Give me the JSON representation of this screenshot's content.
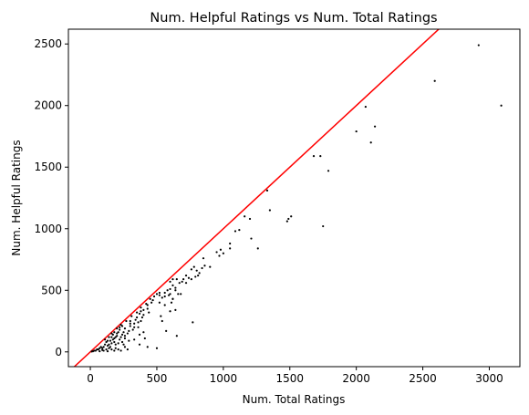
{
  "chart_data": {
    "type": "scatter",
    "title": "Num. Helpful Ratings vs Num. Total Ratings",
    "xlabel": "Num. Total Ratings",
    "ylabel": "Num. Helpful Ratings",
    "xlim": [
      -165,
      3230
    ],
    "ylim": [
      -120,
      2620
    ],
    "xticks": [
      0,
      500,
      1000,
      1500,
      2000,
      2500,
      3000
    ],
    "yticks": [
      0,
      500,
      1000,
      1500,
      2000,
      2500
    ],
    "grid": false,
    "point_color": "#000000",
    "line_color": "#ff0000",
    "reference_line": {
      "slope": 1,
      "intercept": 0
    },
    "points": [
      [
        2920,
        2490
      ],
      [
        3090,
        2000
      ],
      [
        2590,
        2200
      ],
      [
        2140,
        1830
      ],
      [
        2070,
        1990
      ],
      [
        2000,
        1790
      ],
      [
        2110,
        1700
      ],
      [
        1680,
        1590
      ],
      [
        1730,
        1590
      ],
      [
        1790,
        1470
      ],
      [
        1330,
        1310
      ],
      [
        1350,
        1150
      ],
      [
        1160,
        1100
      ],
      [
        1200,
        1080
      ],
      [
        1490,
        1080
      ],
      [
        1480,
        1060
      ],
      [
        1510,
        1100
      ],
      [
        1750,
        1020
      ],
      [
        1120,
        990
      ],
      [
        1090,
        980
      ],
      [
        1210,
        920
      ],
      [
        1260,
        840
      ],
      [
        1050,
        880
      ],
      [
        1050,
        840
      ],
      [
        980,
        830
      ],
      [
        950,
        810
      ],
      [
        1000,
        800
      ],
      [
        970,
        780
      ],
      [
        850,
        760
      ],
      [
        860,
        700
      ],
      [
        900,
        690
      ],
      [
        840,
        680
      ],
      [
        780,
        690
      ],
      [
        800,
        660
      ],
      [
        760,
        670
      ],
      [
        820,
        640
      ],
      [
        810,
        620
      ],
      [
        790,
        610
      ],
      [
        720,
        620
      ],
      [
        740,
        600
      ],
      [
        760,
        590
      ],
      [
        700,
        590
      ],
      [
        690,
        570
      ],
      [
        720,
        560
      ],
      [
        670,
        560
      ],
      [
        620,
        590
      ],
      [
        650,
        590
      ],
      [
        600,
        570
      ],
      [
        620,
        540
      ],
      [
        640,
        520
      ],
      [
        600,
        510
      ],
      [
        580,
        500
      ],
      [
        640,
        500
      ],
      [
        560,
        480
      ],
      [
        600,
        470
      ],
      [
        560,
        450
      ],
      [
        520,
        460
      ],
      [
        520,
        400
      ],
      [
        540,
        440
      ],
      [
        620,
        430
      ],
      [
        610,
        400
      ],
      [
        560,
        380
      ],
      [
        640,
        340
      ],
      [
        600,
        330
      ],
      [
        530,
        290
      ],
      [
        540,
        250
      ],
      [
        570,
        170
      ],
      [
        620,
        430
      ],
      [
        660,
        470
      ],
      [
        590,
        460
      ],
      [
        680,
        470
      ],
      [
        770,
        240
      ],
      [
        650,
        130
      ],
      [
        500,
        30
      ],
      [
        430,
        40
      ],
      [
        370,
        60
      ],
      [
        460,
        400
      ],
      [
        470,
        420
      ],
      [
        430,
        350
      ],
      [
        430,
        380
      ],
      [
        400,
        340
      ],
      [
        440,
        320
      ],
      [
        380,
        330
      ],
      [
        400,
        300
      ],
      [
        370,
        310
      ],
      [
        350,
        280
      ],
      [
        390,
        280
      ],
      [
        340,
        260
      ],
      [
        360,
        240
      ],
      [
        330,
        230
      ],
      [
        380,
        250
      ],
      [
        330,
        200
      ],
      [
        360,
        200
      ],
      [
        400,
        160
      ],
      [
        370,
        140
      ],
      [
        410,
        110
      ],
      [
        330,
        100
      ],
      [
        300,
        250
      ],
      [
        300,
        230
      ],
      [
        300,
        210
      ],
      [
        320,
        180
      ],
      [
        290,
        170
      ],
      [
        260,
        190
      ],
      [
        280,
        150
      ],
      [
        260,
        130
      ],
      [
        250,
        160
      ],
      [
        240,
        140
      ],
      [
        230,
        120
      ],
      [
        260,
        110
      ],
      [
        290,
        90
      ],
      [
        220,
        100
      ],
      [
        240,
        80
      ],
      [
        250,
        60
      ],
      [
        210,
        70
      ],
      [
        260,
        40
      ],
      [
        280,
        20
      ],
      [
        220,
        200
      ],
      [
        240,
        210
      ],
      [
        220,
        180
      ],
      [
        210,
        160
      ],
      [
        200,
        150
      ],
      [
        200,
        130
      ],
      [
        190,
        120
      ],
      [
        180,
        110
      ],
      [
        170,
        140
      ],
      [
        160,
        120
      ],
      [
        170,
        100
      ],
      [
        150,
        90
      ],
      [
        180,
        80
      ],
      [
        190,
        60
      ],
      [
        160,
        70
      ],
      [
        140,
        60
      ],
      [
        150,
        40
      ],
      [
        130,
        50
      ],
      [
        140,
        30
      ],
      [
        120,
        20
      ],
      [
        160,
        20
      ],
      [
        100,
        10
      ],
      [
        190,
        30
      ],
      [
        210,
        20
      ],
      [
        230,
        10
      ],
      [
        110,
        60
      ],
      [
        100,
        40
      ],
      [
        90,
        30
      ],
      [
        80,
        40
      ],
      [
        70,
        30
      ],
      [
        60,
        20
      ],
      [
        50,
        20
      ],
      [
        40,
        10
      ],
      [
        30,
        10
      ],
      [
        20,
        5
      ],
      [
        10,
        3
      ],
      [
        130,
        90
      ],
      [
        120,
        80
      ],
      [
        110,
        100
      ],
      [
        140,
        120
      ],
      [
        160,
        150
      ],
      [
        180,
        160
      ],
      [
        200,
        190
      ],
      [
        230,
        220
      ],
      [
        270,
        250
      ],
      [
        310,
        290
      ],
      [
        350,
        320
      ],
      [
        380,
        360
      ],
      [
        420,
        390
      ],
      [
        450,
        430
      ],
      [
        480,
        450
      ],
      [
        500,
        470
      ],
      [
        520,
        480
      ],
      [
        180,
        10
      ],
      [
        130,
        5
      ],
      [
        90,
        15
      ],
      [
        70,
        5
      ]
    ]
  }
}
